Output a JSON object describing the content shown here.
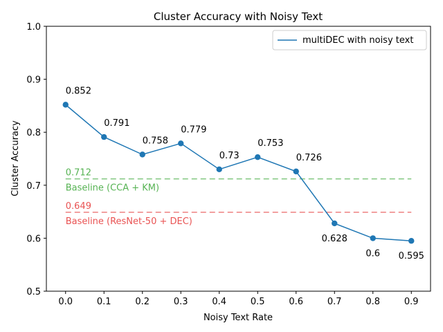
{
  "chart_data": {
    "type": "line",
    "title": "Cluster Accuracy with Noisy Text",
    "xlabel": "Noisy Text Rate",
    "ylabel": "Cluster Accuracy",
    "xlim": [
      -0.05,
      0.95
    ],
    "ylim": [
      0.5,
      1.0
    ],
    "xticks": [
      0.0,
      0.1,
      0.2,
      0.3,
      0.4,
      0.5,
      0.6,
      0.7,
      0.8,
      0.9
    ],
    "xtick_labels": [
      "0.0",
      "0.1",
      "0.2",
      "0.3",
      "0.4",
      "0.5",
      "0.6",
      "0.7",
      "0.8",
      "0.9"
    ],
    "yticks": [
      0.5,
      0.6,
      0.7,
      0.8,
      0.9,
      1.0
    ],
    "ytick_labels": [
      "0.5",
      "0.6",
      "0.7",
      "0.8",
      "0.9",
      "1.0"
    ],
    "grid": false,
    "legend_position": "top-right",
    "series": [
      {
        "name": "multiDEC with noisy text",
        "color": "#1f77b4",
        "x": [
          0.0,
          0.1,
          0.2,
          0.3,
          0.4,
          0.5,
          0.6,
          0.7,
          0.8,
          0.9
        ],
        "y": [
          0.852,
          0.791,
          0.758,
          0.779,
          0.73,
          0.753,
          0.726,
          0.628,
          0.6,
          0.595
        ],
        "labels": [
          "0.852",
          "0.791",
          "0.758",
          "0.779",
          "0.73",
          "0.753",
          "0.726",
          "0.628",
          "0.6",
          "0.595"
        ],
        "label_side": [
          "above",
          "above",
          "above",
          "above",
          "above",
          "above",
          "above",
          "below",
          "below",
          "below"
        ]
      }
    ],
    "baselines": [
      {
        "name": "Baseline (CCA + KM)",
        "value": 0.712,
        "value_label": "0.712",
        "color": "#4daf4a"
      },
      {
        "name": "Baseline (ResNet-50 + DEC)",
        "value": 0.649,
        "value_label": "0.649",
        "color": "#e84a4a"
      }
    ]
  }
}
